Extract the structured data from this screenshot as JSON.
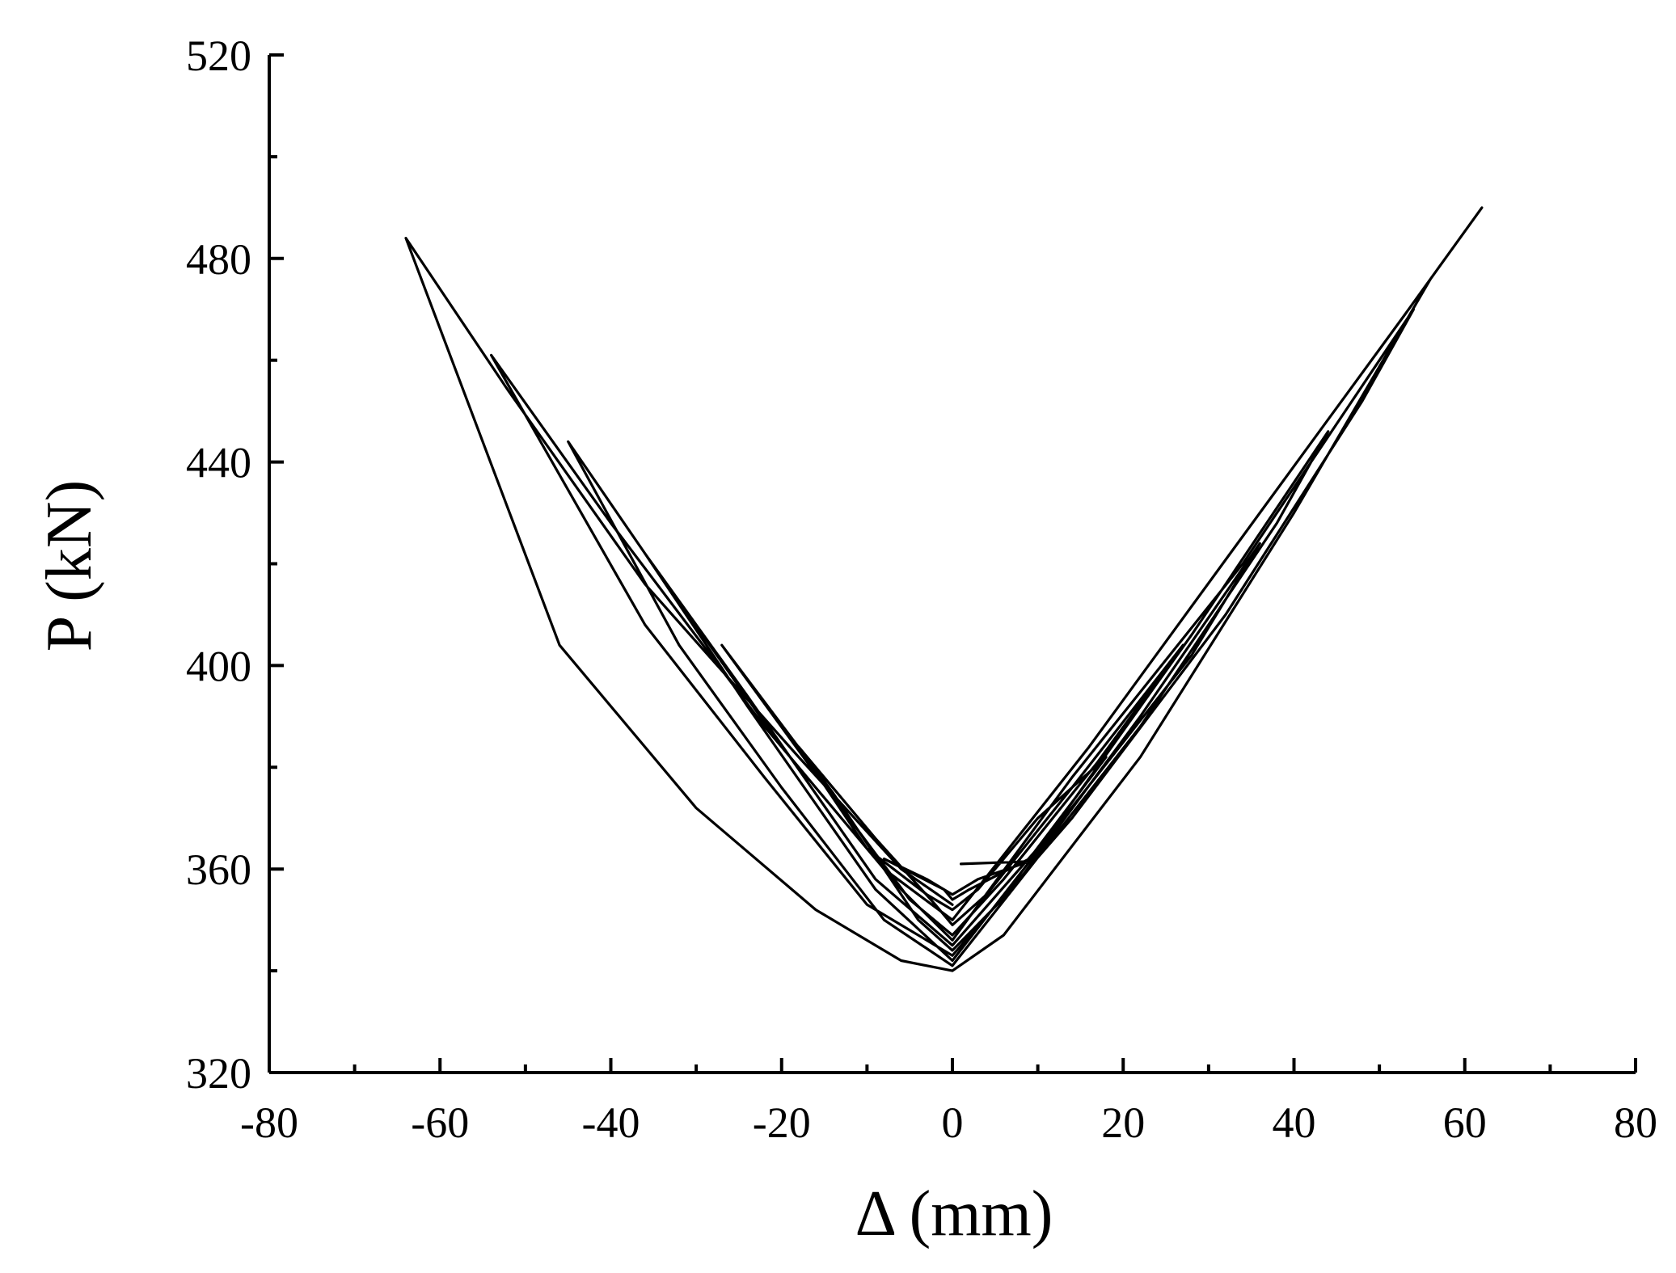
{
  "chart_data": {
    "type": "line",
    "title": "",
    "xlabel": "Δ (mm)",
    "ylabel": "P (kN)",
    "xlim": [
      -80,
      80
    ],
    "ylim": [
      320,
      520
    ],
    "x_ticks": [
      -80,
      -60,
      -40,
      -20,
      0,
      20,
      40,
      60,
      80
    ],
    "x_tick_labels": [
      "-80",
      "-60",
      "-40",
      "-20",
      "0",
      "20",
      "40",
      "60",
      "80"
    ],
    "y_ticks": [
      320,
      360,
      400,
      440,
      480,
      520
    ],
    "y_tick_labels": [
      "320",
      "360",
      "400",
      "440",
      "480",
      "520"
    ],
    "grid": false,
    "legend": "none",
    "line_color": "#000000",
    "series": [
      {
        "values": [
          [
            1,
            361
          ],
          [
            9,
            361.5
          ],
          [
            3,
            358
          ],
          [
            0,
            355
          ],
          [
            -3,
            358
          ],
          [
            -8,
            362
          ],
          [
            -1,
            356
          ],
          [
            0,
            354
          ],
          [
            2,
            356
          ],
          [
            9,
            362
          ],
          [
            18,
            382
          ],
          [
            10,
            370
          ],
          [
            3,
            356
          ],
          [
            0,
            352
          ],
          [
            -3,
            355
          ],
          [
            -10,
            364
          ],
          [
            -18,
            384
          ],
          [
            -9,
            366
          ],
          [
            -2,
            353
          ],
          [
            0,
            349
          ],
          [
            4,
            355
          ],
          [
            14,
            376
          ],
          [
            27,
            404
          ],
          [
            17,
            381
          ],
          [
            6,
            358
          ],
          [
            0,
            347
          ],
          [
            -5,
            354
          ],
          [
            -17,
            381
          ],
          [
            -27,
            404
          ],
          [
            -14,
            375
          ],
          [
            -4,
            350
          ],
          [
            0,
            344
          ],
          [
            7,
            356
          ],
          [
            22,
            390
          ],
          [
            36,
            424
          ],
          [
            28,
            402
          ],
          [
            13,
            370
          ],
          [
            0,
            342
          ],
          [
            -9,
            356
          ],
          [
            -24,
            392
          ],
          [
            -36,
            422
          ],
          [
            -24,
            394
          ],
          [
            -9,
            358
          ],
          [
            0,
            345
          ],
          [
            11,
            366
          ],
          [
            28,
            406
          ],
          [
            44,
            446
          ],
          [
            38,
            428
          ],
          [
            22,
            388
          ],
          [
            8,
            358
          ],
          [
            0,
            341
          ],
          [
            -8,
            350
          ],
          [
            -20,
            376
          ],
          [
            -32,
            404
          ],
          [
            -45,
            444
          ],
          [
            -36,
            422
          ],
          [
            -20,
            384
          ],
          [
            -6,
            356
          ],
          [
            0,
            346
          ],
          [
            14,
            378
          ],
          [
            34,
            420
          ],
          [
            54,
            470
          ],
          [
            48,
            452
          ],
          [
            32,
            410
          ],
          [
            14,
            370
          ],
          [
            0,
            343
          ],
          [
            -10,
            353
          ],
          [
            -22,
            378
          ],
          [
            -36,
            408
          ],
          [
            -54,
            461
          ],
          [
            -40,
            428
          ],
          [
            -22,
            388
          ],
          [
            -8,
            360
          ],
          [
            0,
            350
          ],
          [
            16,
            384
          ],
          [
            36,
            430
          ],
          [
            53,
            469
          ],
          [
            62,
            490
          ],
          [
            56,
            476
          ],
          [
            40,
            430
          ],
          [
            22,
            382
          ],
          [
            6,
            347
          ],
          [
            0,
            340
          ],
          [
            -6,
            342
          ],
          [
            -16,
            352
          ],
          [
            -30,
            372
          ],
          [
            -46,
            404
          ],
          [
            -64,
            484
          ],
          [
            -52,
            454
          ],
          [
            -36,
            416
          ],
          [
            -18,
            382
          ],
          [
            -6,
            360
          ],
          [
            0,
            353
          ]
        ]
      }
    ]
  }
}
